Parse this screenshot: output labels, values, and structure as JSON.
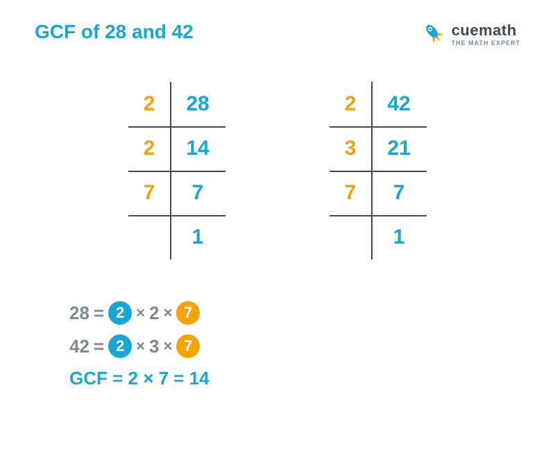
{
  "colors": {
    "blue": "#18a6d5",
    "orange": "#f4a304",
    "dark": "#3a4a5a",
    "gray": "#7a8a94",
    "line": "#3a4a5a"
  },
  "title": "GCF of 28 and 42",
  "brand": "cuemath",
  "tagline": "THE MATH EXPERT",
  "table1": {
    "left": [
      "2",
      "2",
      "7",
      ""
    ],
    "right": [
      "28",
      "14",
      "7",
      "1"
    ]
  },
  "table2": {
    "left": [
      "2",
      "3",
      "7",
      ""
    ],
    "right": [
      "42",
      "21",
      "7",
      "1"
    ]
  },
  "eq1": {
    "num": "28",
    "c1": "2",
    "mid": "2",
    "c2": "7"
  },
  "eq2": {
    "num": "42",
    "c1": "2",
    "mid": "3",
    "c2": "7"
  },
  "eq3": "GCF = 2 × 7 = 14"
}
